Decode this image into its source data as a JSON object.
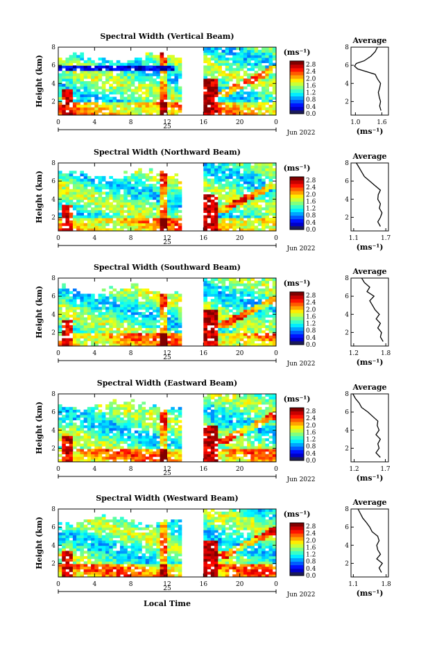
{
  "chart_data": [
    {
      "type": "heatmap",
      "title": "Spectral Width (Vertical Beam)",
      "ylabel": "Height (km)",
      "xlabel": "",
      "ylim": [
        0.5,
        8
      ],
      "yticks": [
        "2",
        "4",
        "6",
        "8"
      ],
      "xticks": [
        "0",
        "4",
        "8",
        "12",
        "16",
        "20",
        "0"
      ],
      "day_label": "25",
      "date_label": "Jun 2022",
      "colorbar_unit": "(ms⁻¹)",
      "colorbar_ticks": [
        "0.0",
        "0.4",
        "0.8",
        "1.2",
        "1.6",
        "2.0",
        "2.4",
        "2.8"
      ],
      "colorbar_range": [
        0,
        3.0
      ],
      "data_gap_hours": [
        13.5,
        16
      ],
      "profile": {
        "title": "Average",
        "xlabel": "(ms⁻¹)",
        "xticks": [
          "1.0",
          "1.6"
        ],
        "xlim": [
          0.9,
          1.75
        ],
        "yticks": [
          "2",
          "4",
          "6",
          "8"
        ],
        "heights": [
          1.0,
          1.5,
          2.0,
          2.5,
          3.0,
          3.5,
          4.0,
          4.5,
          5.0,
          5.3,
          5.6,
          5.9,
          6.2,
          6.5,
          7.0,
          7.5,
          8.0
        ],
        "values": [
          1.58,
          1.55,
          1.57,
          1.54,
          1.52,
          1.55,
          1.57,
          1.5,
          1.45,
          1.25,
          1.05,
          0.98,
          1.02,
          1.2,
          1.35,
          1.45,
          1.5
        ]
      }
    },
    {
      "type": "heatmap",
      "title": "Spectral Width (Northward Beam)",
      "ylabel": "Height (km)",
      "xlabel": "",
      "ylim": [
        0.5,
        8
      ],
      "yticks": [
        "2",
        "4",
        "6",
        "8"
      ],
      "xticks": [
        "0",
        "4",
        "8",
        "12",
        "16",
        "20",
        "0"
      ],
      "day_label": "25",
      "date_label": "Jun 2022",
      "colorbar_unit": "(ms⁻¹)",
      "colorbar_ticks": [
        "0.0",
        "0.4",
        "0.8",
        "1.2",
        "1.6",
        "2.0",
        "2.4",
        "2.8"
      ],
      "colorbar_range": [
        0,
        3.0
      ],
      "data_gap_hours": [
        13.5,
        16
      ],
      "profile": {
        "title": "Average",
        "xlabel": "(ms⁻¹)",
        "xticks": [
          "1.1",
          "1.7"
        ],
        "xlim": [
          1.05,
          1.75
        ],
        "yticks": [
          "2",
          "4",
          "6",
          "8"
        ],
        "heights": [
          1.0,
          1.5,
          2.0,
          2.5,
          3.0,
          3.5,
          4.0,
          4.5,
          5.0,
          5.5,
          6.0,
          6.5,
          7.0,
          7.5,
          8.0
        ],
        "values": [
          1.6,
          1.55,
          1.6,
          1.63,
          1.58,
          1.6,
          1.55,
          1.56,
          1.6,
          1.5,
          1.4,
          1.3,
          1.25,
          1.2,
          1.15
        ]
      }
    },
    {
      "type": "heatmap",
      "title": "Spectral Width (Southward Beam)",
      "ylabel": "Height (km)",
      "xlabel": "",
      "ylim": [
        0.5,
        8
      ],
      "yticks": [
        "2",
        "4",
        "6",
        "8"
      ],
      "xticks": [
        "0",
        "4",
        "8",
        "12",
        "16",
        "20",
        "0"
      ],
      "day_label": "25",
      "date_label": "Jun 2022",
      "colorbar_unit": "(ms⁻¹)",
      "colorbar_ticks": [
        "0.0",
        "0.4",
        "0.8",
        "1.2",
        "1.6",
        "2.0",
        "2.4",
        "2.8"
      ],
      "colorbar_range": [
        0,
        3.0
      ],
      "data_gap_hours": [
        13.5,
        16
      ],
      "profile": {
        "title": "Average",
        "xlabel": "(ms⁻¹)",
        "xticks": [
          "1.2",
          "1.8"
        ],
        "xlim": [
          1.15,
          1.85
        ],
        "yticks": [
          "2",
          "4",
          "6",
          "8"
        ],
        "heights": [
          1.0,
          1.5,
          2.0,
          2.5,
          3.0,
          3.5,
          4.0,
          4.5,
          5.0,
          5.5,
          6.0,
          6.5,
          7.0,
          7.5,
          8.0
        ],
        "values": [
          1.75,
          1.7,
          1.72,
          1.65,
          1.7,
          1.62,
          1.68,
          1.6,
          1.55,
          1.5,
          1.58,
          1.45,
          1.5,
          1.4,
          1.35
        ]
      }
    },
    {
      "type": "heatmap",
      "title": "Spectral Width (Eastward Beam)",
      "ylabel": "Height (km)",
      "xlabel": "",
      "ylim": [
        0.5,
        8
      ],
      "yticks": [
        "2",
        "4",
        "6",
        "8"
      ],
      "xticks": [
        "0",
        "4",
        "8",
        "12",
        "16",
        "20",
        "0"
      ],
      "day_label": "25",
      "date_label": "Jun 2022",
      "colorbar_unit": "(ms⁻¹)",
      "colorbar_ticks": [
        "0.0",
        "0.4",
        "0.8",
        "1.2",
        "1.6",
        "2.0",
        "2.4",
        "2.8"
      ],
      "colorbar_range": [
        0,
        3.0
      ],
      "data_gap_hours": [
        13.5,
        16
      ],
      "profile": {
        "title": "Average",
        "xlabel": "(ms⁻¹)",
        "xticks": [
          "1.2",
          "1.7"
        ],
        "xlim": [
          1.15,
          1.75
        ],
        "yticks": [
          "2",
          "4",
          "6",
          "8"
        ],
        "heights": [
          1.0,
          1.5,
          2.0,
          2.5,
          3.0,
          3.5,
          4.0,
          4.5,
          5.0,
          5.5,
          6.0,
          6.5,
          7.0,
          7.5,
          8.0
        ],
        "values": [
          1.62,
          1.55,
          1.6,
          1.58,
          1.62,
          1.55,
          1.6,
          1.57,
          1.58,
          1.5,
          1.42,
          1.32,
          1.28,
          1.22,
          1.18
        ]
      }
    },
    {
      "type": "heatmap",
      "title": "Spectral Width (Westward Beam)",
      "ylabel": "Height (km)",
      "xlabel": "Local Time",
      "ylim": [
        0.5,
        8
      ],
      "yticks": [
        "2",
        "4",
        "6",
        "8"
      ],
      "xticks": [
        "0",
        "4",
        "8",
        "12",
        "16",
        "20",
        "0"
      ],
      "day_label": "25",
      "date_label": "Jun 2022",
      "colorbar_unit": "(ms⁻¹)",
      "colorbar_ticks": [
        "0.0",
        "0.4",
        "0.8",
        "1.2",
        "1.6",
        "2.0",
        "2.4",
        "2.8"
      ],
      "colorbar_range": [
        0,
        3.0
      ],
      "data_gap_hours": [
        13.5,
        16
      ],
      "profile": {
        "title": "Average",
        "xlabel": "(ms⁻¹)",
        "xticks": [
          "1.1",
          "1.8"
        ],
        "xlim": [
          1.05,
          1.85
        ],
        "yticks": [
          "2",
          "4",
          "6",
          "8"
        ],
        "heights": [
          1.0,
          1.5,
          2.0,
          2.5,
          3.0,
          3.5,
          4.0,
          4.5,
          5.0,
          5.5,
          6.0,
          6.5,
          7.0,
          7.5,
          8.0
        ],
        "values": [
          1.7,
          1.65,
          1.72,
          1.6,
          1.68,
          1.62,
          1.6,
          1.65,
          1.62,
          1.5,
          1.45,
          1.38,
          1.3,
          1.25,
          1.2
        ]
      }
    }
  ]
}
